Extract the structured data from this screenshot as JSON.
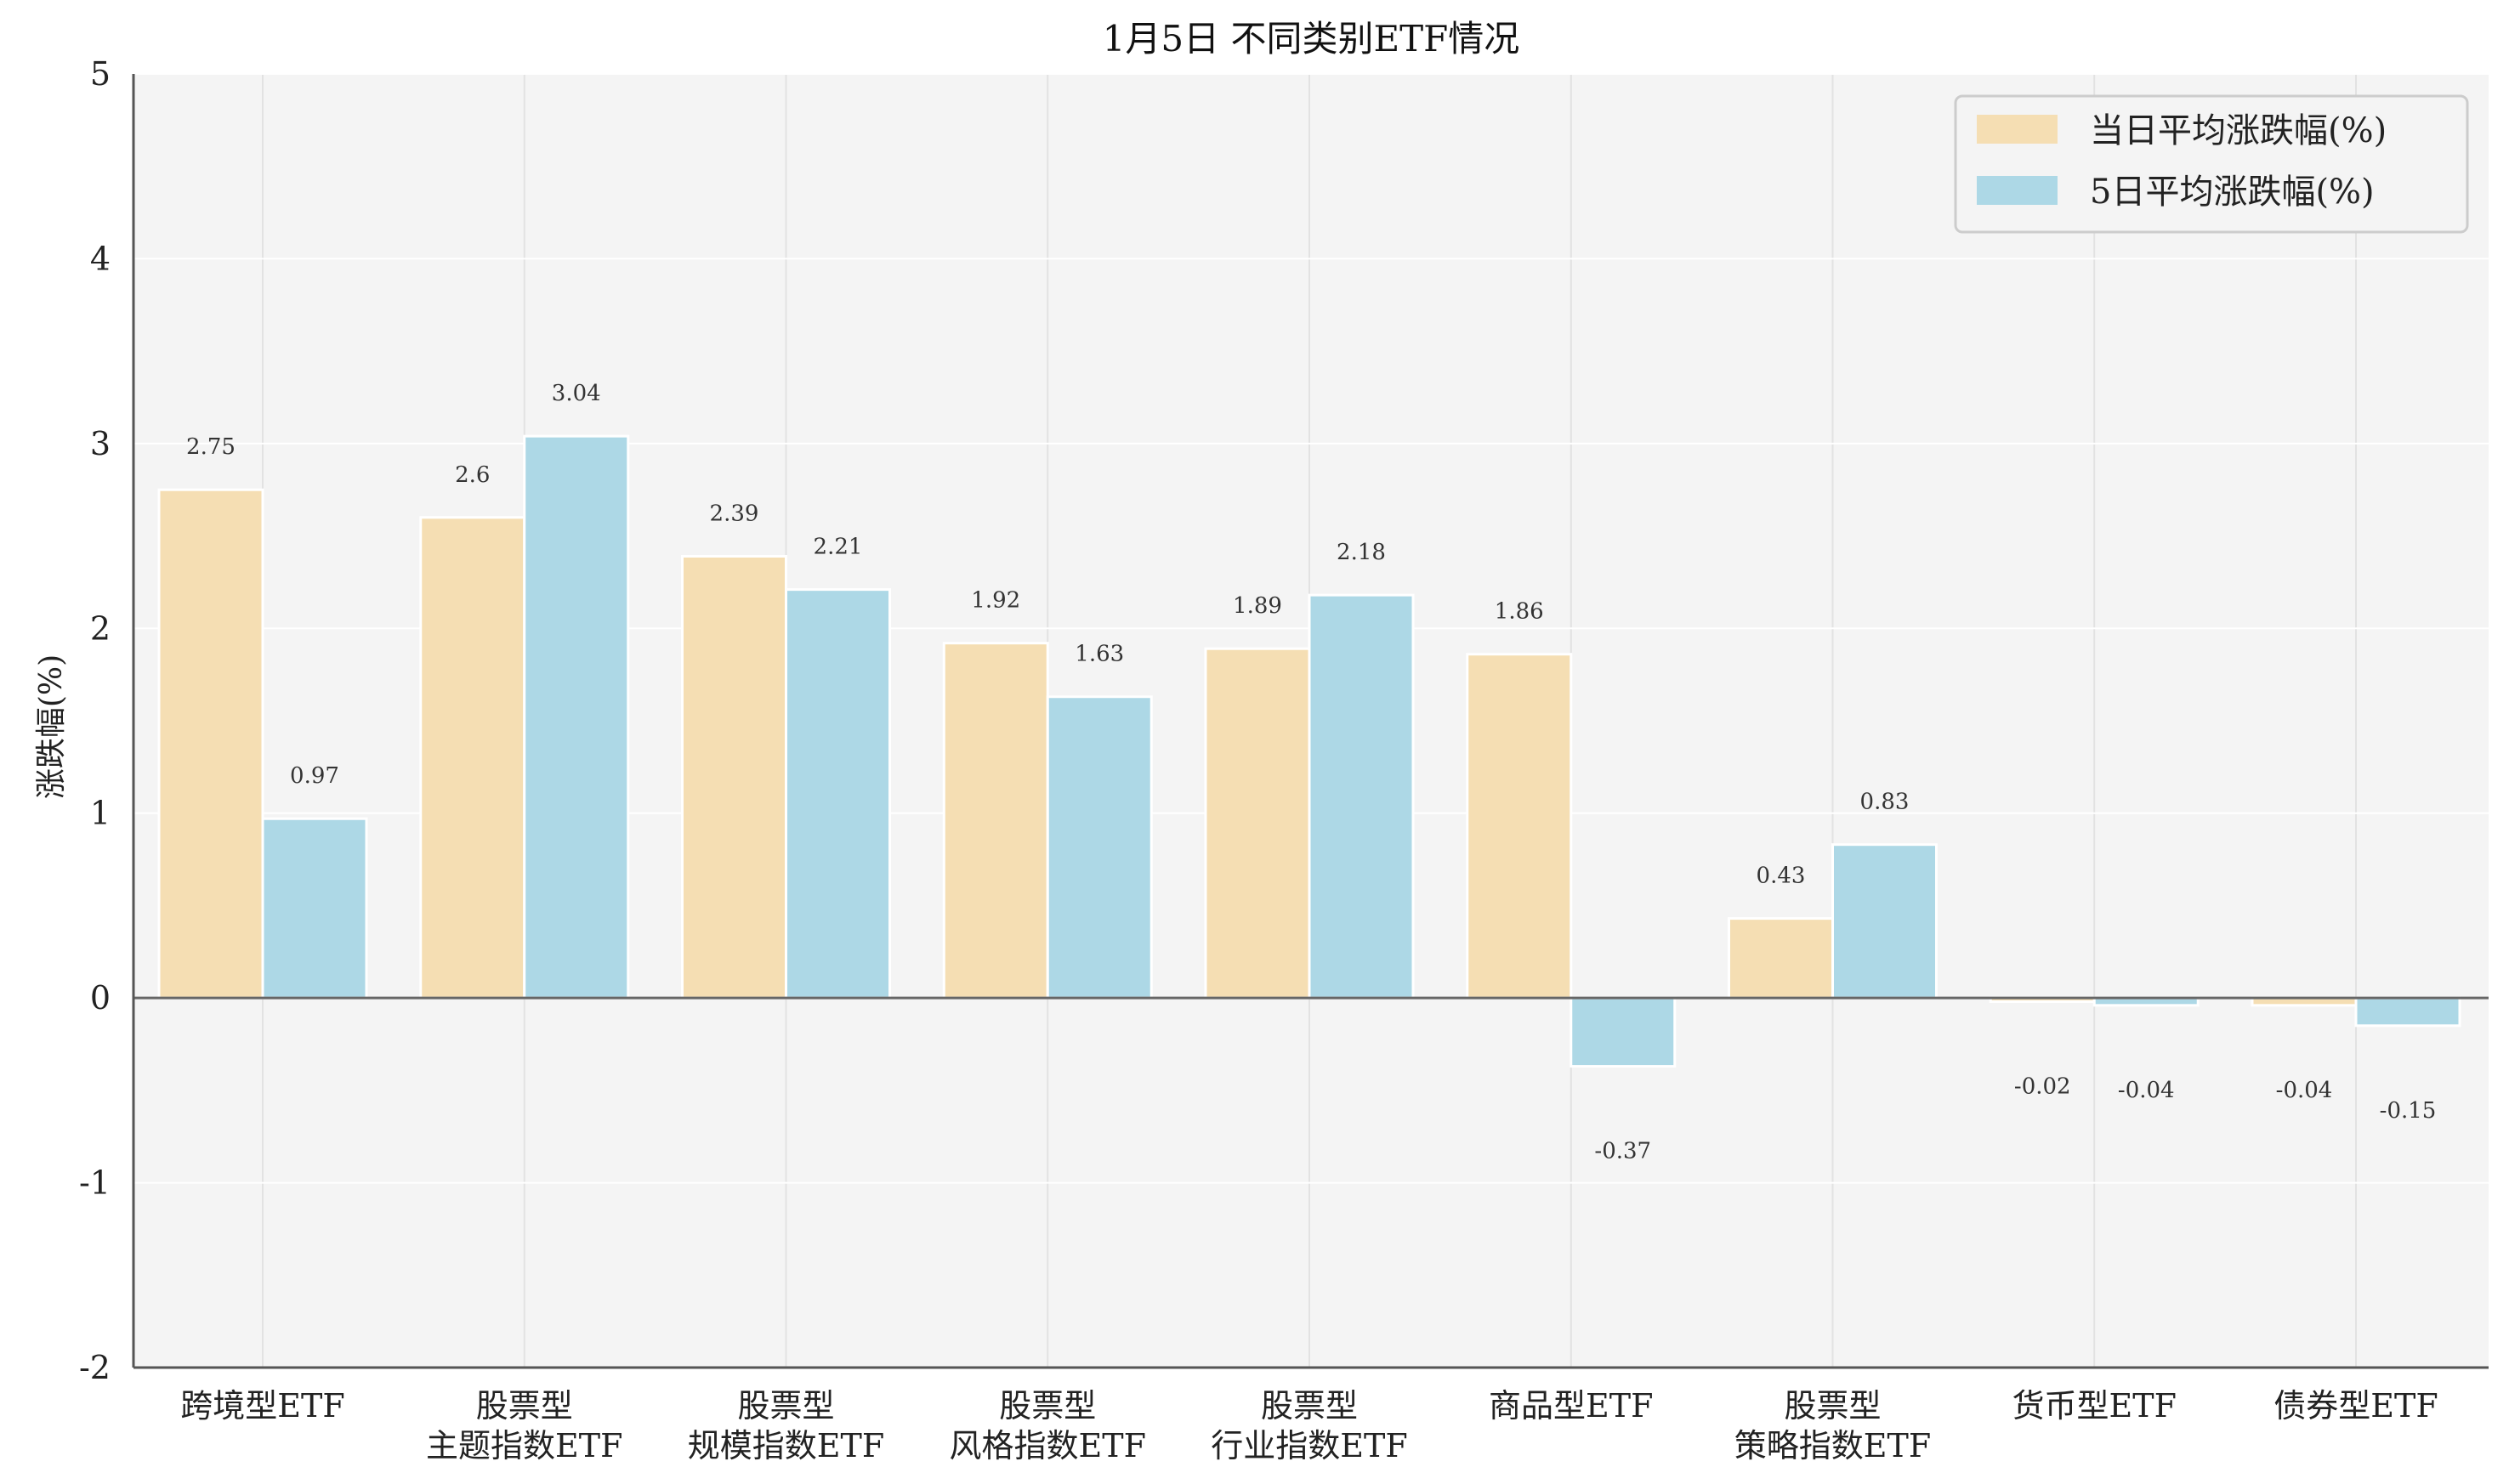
{
  "chart_data": {
    "type": "bar",
    "title": "1月5日 不同类别ETF情况",
    "xlabel": "",
    "ylabel": "涨跌幅(%)",
    "ylim": [
      -2,
      5
    ],
    "yticks": [
      -2,
      -1,
      0,
      1,
      2,
      3,
      4,
      5
    ],
    "grid": true,
    "legend_position": "top-right",
    "categories": [
      [
        "跨境型ETF"
      ],
      [
        "股票型",
        "主题指数ETF"
      ],
      [
        "股票型",
        "规模指数ETF"
      ],
      [
        "股票型",
        "风格指数ETF"
      ],
      [
        "股票型",
        "行业指数ETF"
      ],
      [
        "商品型ETF"
      ],
      [
        "股票型",
        "策略指数ETF"
      ],
      [
        "货币型ETF"
      ],
      [
        "债券型ETF"
      ]
    ],
    "series": [
      {
        "name": "当日平均涨跌幅(%)",
        "color": "#f5deb3",
        "values": [
          2.75,
          2.6,
          2.39,
          1.92,
          1.89,
          1.86,
          0.43,
          -0.02,
          -0.04
        ],
        "labels": [
          "2.75",
          "2.6",
          "2.39",
          "1.92",
          "1.89",
          "1.86",
          "0.43",
          "-0.02",
          "-0.04"
        ]
      },
      {
        "name": "5日平均涨跌幅(%)",
        "color": "#add8e6",
        "values": [
          0.97,
          3.04,
          2.21,
          1.63,
          2.18,
          -0.37,
          0.83,
          -0.04,
          -0.15
        ],
        "labels": [
          "0.97",
          "3.04",
          "2.21",
          "1.63",
          "2.18",
          "-0.37",
          "0.83",
          "-0.04",
          "-0.15"
        ]
      }
    ]
  },
  "colors": {
    "plot_background": "#f4f4f4",
    "grid": "#ffffff",
    "axis": "#555555"
  }
}
